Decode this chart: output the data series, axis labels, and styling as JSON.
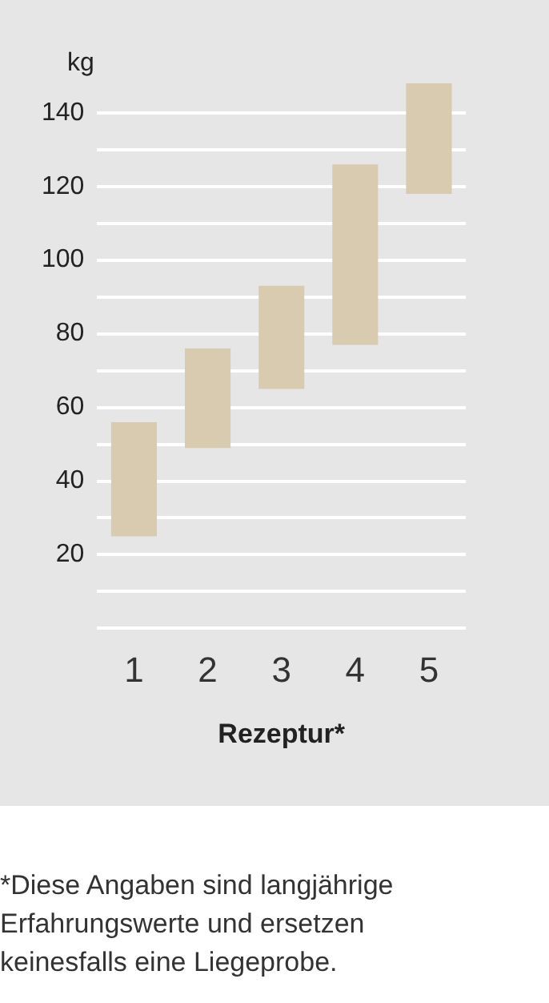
{
  "chart_data": {
    "type": "bar",
    "xlabel": "Rezeptur*",
    "ylabel": "kg",
    "categories": [
      "1",
      "2",
      "3",
      "4",
      "5"
    ],
    "base": [
      25,
      49,
      65,
      77,
      118
    ],
    "values": [
      31,
      27,
      28,
      49,
      30
    ],
    "color": "#d9cbaf",
    "yticks": [
      {
        "value": 0,
        "label": null
      },
      {
        "value": 10,
        "label": null
      },
      20,
      {
        "value": 30,
        "label": null
      },
      40,
      {
        "value": 50,
        "label": null
      },
      60,
      {
        "value": 70,
        "label": null
      },
      80,
      {
        "value": 90,
        "label": null
      },
      100,
      {
        "value": 110,
        "label": null
      },
      120,
      {
        "value": 130,
        "label": null
      },
      140
    ],
    "ylim": [
      0,
      148
    ],
    "grid": "y",
    "annotations": [
      "*Diese Angaben sind langjährige Erfahrungswerte und ersetzen keinesfalls eine Liegeprobe."
    ]
  }
}
